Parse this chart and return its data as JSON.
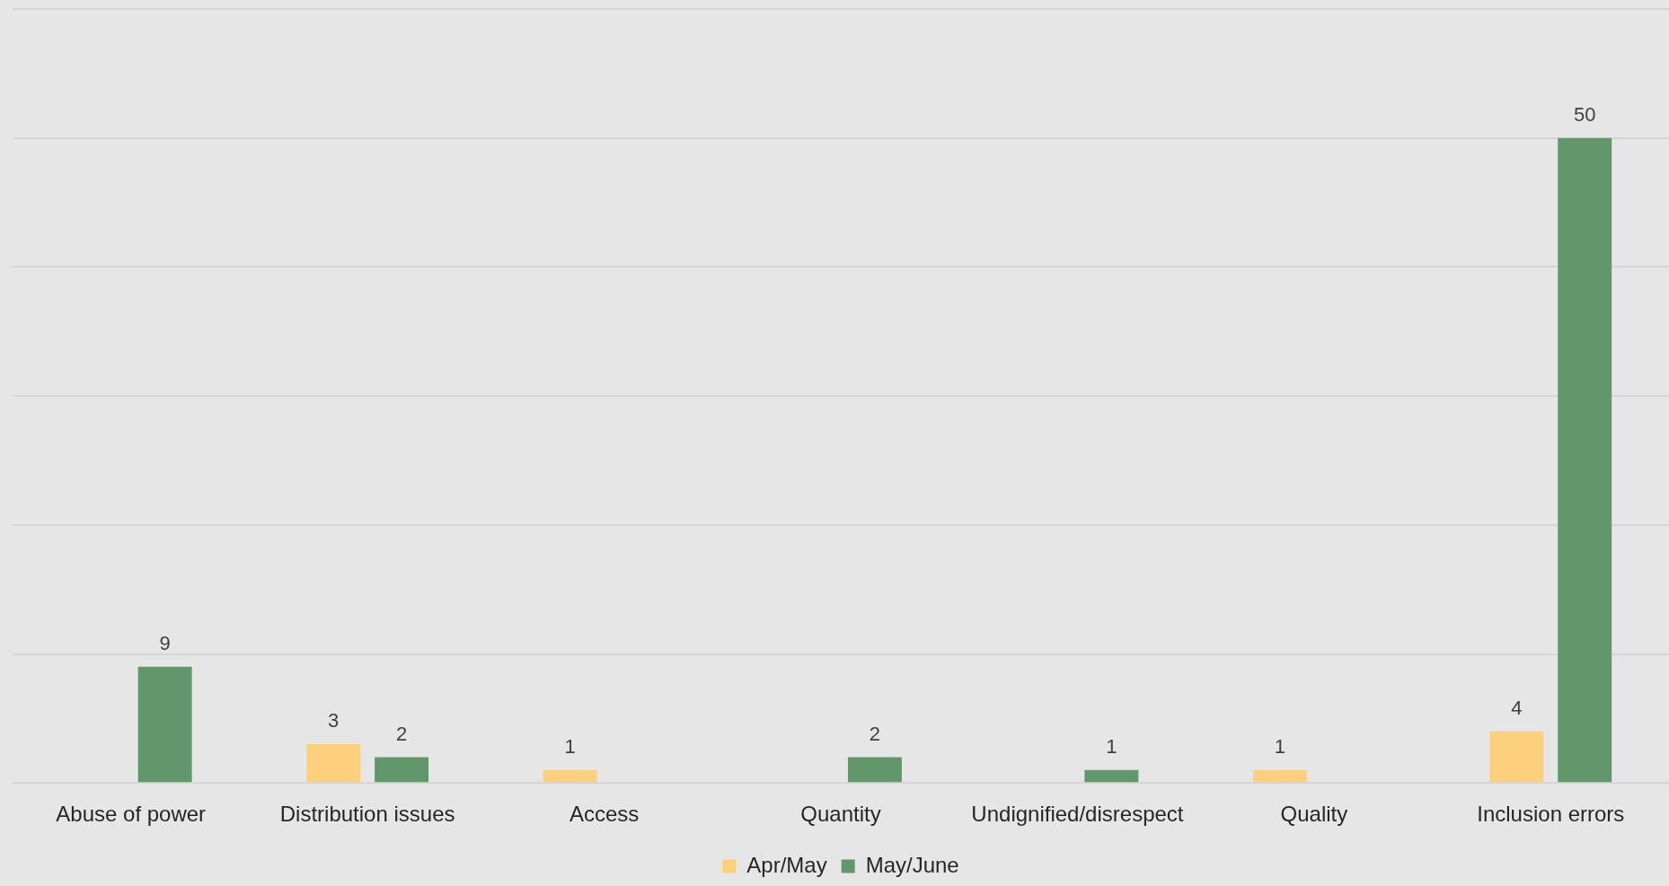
{
  "chart_data": {
    "type": "bar",
    "categories": [
      "Abuse of power",
      "Distribution issues",
      "Access",
      "Quantity",
      "Undignified/disrespect",
      "Quality",
      "Inclusion errors"
    ],
    "series": [
      {
        "name": "Apr/May",
        "color": "#fdd080",
        "values": [
          null,
          3,
          1,
          null,
          null,
          1,
          4
        ]
      },
      {
        "name": "May/June",
        "color": "#62966b",
        "values": [
          9,
          2,
          null,
          2,
          1,
          null,
          50
        ]
      }
    ],
    "ylim": [
      0,
      60
    ],
    "yticks": [
      {
        "value": 0,
        "label": null
      },
      {
        "value": 10,
        "label": null
      },
      {
        "value": 20,
        "label": null
      },
      {
        "value": 30,
        "label": null
      },
      {
        "value": 40,
        "label": null
      },
      {
        "value": 50,
        "label": null
      },
      {
        "value": 60,
        "label": null
      }
    ],
    "tick_labels": "x",
    "grid": "y",
    "legend": "bottom",
    "data_labels": true
  }
}
